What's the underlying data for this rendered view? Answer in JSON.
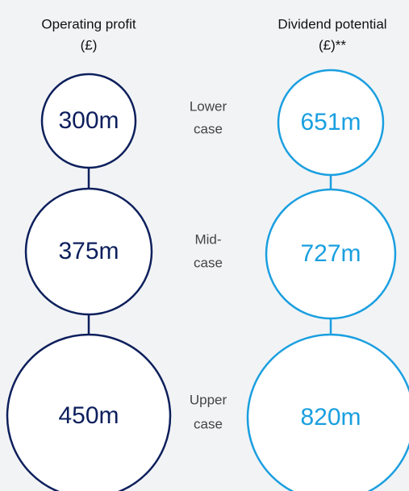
{
  "columns": [
    {
      "title": [
        "Operating profit",
        "(£)"
      ]
    },
    {
      "title": [
        "Dividend potential",
        "(£)**"
      ]
    }
  ],
  "rows": [
    {
      "label": [
        "Lower",
        "case"
      ],
      "values": [
        "300m",
        "651m"
      ]
    },
    {
      "label": [
        "Mid-",
        "case"
      ],
      "values": [
        "375m",
        "727m"
      ]
    },
    {
      "label": [
        "Upper",
        "case"
      ],
      "values": [
        "450m",
        "820m"
      ]
    }
  ]
}
